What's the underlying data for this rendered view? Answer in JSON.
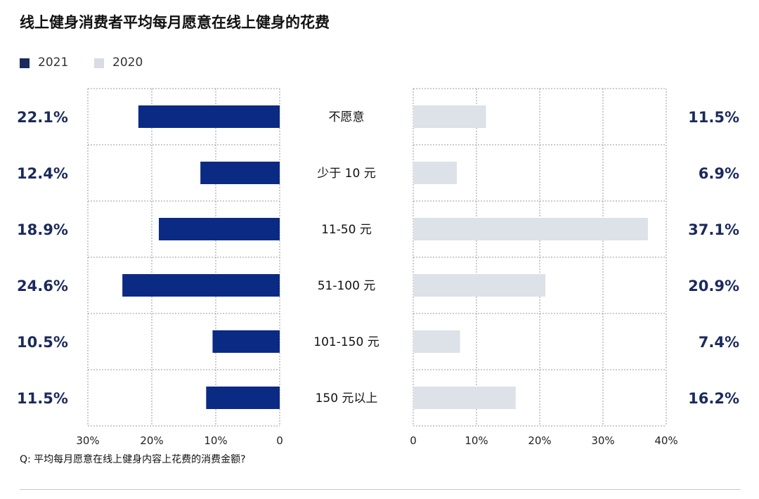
{
  "title": "线上健身消费者平均每月愿意在线上健身的花费",
  "question": "Q: 平均每月愿意在线上健身内容上花费的消费金额?",
  "colors": {
    "series_2021": "#0b2a83",
    "series_2020": "#dde1e8",
    "value_text": "#1b2a5c",
    "legend_2021": "#1b2a5c",
    "legend_2020": "#d9dde3"
  },
  "chart_data": {
    "type": "bar",
    "title": "线上健身消费者平均每月愿意在线上健身的花费",
    "categories": [
      "不愿意",
      "少于 10 元",
      "11-50 元",
      "51-100 元",
      "101-150 元",
      "150 元以上"
    ],
    "series": [
      {
        "name": "2021",
        "values": [
          22.1,
          12.4,
          18.9,
          24.6,
          10.5,
          11.5
        ],
        "labels": [
          "22.1%",
          "12.4%",
          "18.9%",
          "24.6%",
          "10.5%",
          "11.5%"
        ],
        "ticks": [
          "30%",
          "20%",
          "10%",
          "0"
        ],
        "xlim": [
          0,
          30
        ],
        "direction": "left"
      },
      {
        "name": "2020",
        "values": [
          11.5,
          6.9,
          37.1,
          20.9,
          7.4,
          16.2
        ],
        "labels": [
          "11.5%",
          "6.9%",
          "37.1%",
          "20.9%",
          "7.4%",
          "16.2%"
        ],
        "ticks": [
          "0",
          "10%",
          "20%",
          "30%",
          "40%"
        ],
        "xlim": [
          0,
          40
        ],
        "direction": "right"
      }
    ],
    "grid": true,
    "legend_position": "top-left"
  }
}
